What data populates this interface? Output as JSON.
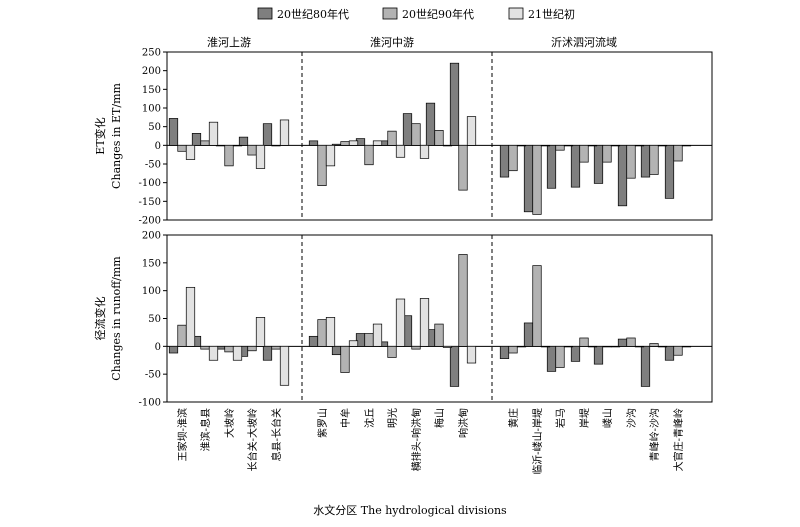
{
  "legend": [
    {
      "label": "20世纪80年代",
      "color": "#7f7f7f"
    },
    {
      "label": "20世纪90年代",
      "color": "#b3b3b3"
    },
    {
      "label": "21世纪初",
      "color": "#e2e2e2"
    }
  ],
  "regions": [
    "淮河上游",
    "淮河中游",
    "沂沭泗河流域"
  ],
  "x_title": "水文分区 The hydrological divisions",
  "chart_data": [
    {
      "type": "bar",
      "ylabel_cn": "ET变化",
      "ylabel_en": "Changes in ET/mm",
      "ylim": [
        -200,
        250
      ],
      "yticks": [
        -200,
        -150,
        -100,
        -50,
        0,
        50,
        100,
        150,
        200,
        250
      ],
      "categories": [
        "王家坝-淮滨",
        "淮滨-息县",
        "大坡岭",
        "长台关-大坡岭",
        "息县-长台关",
        "紫罗山",
        "中牟",
        "沈丘",
        "明光",
        "横排头-响洪甸",
        "梅山",
        "响洪甸",
        "黄庄",
        "临沂-嵝山-岸堤",
        "岩马",
        "岸堤",
        "嵝山",
        "沙沟",
        "青峰岭-沙沟",
        "大官庄-青峰岭"
      ],
      "series": [
        {
          "name": "20世纪80年代",
          "values": [
            72,
            32,
            0,
            22,
            58,
            12,
            3,
            18,
            12,
            85,
            113,
            220,
            -85,
            -178,
            -115,
            -112,
            -102,
            -162,
            -85,
            -142
          ]
        },
        {
          "name": "20世纪90年代",
          "values": [
            -16,
            12,
            -55,
            -26,
            0,
            -108,
            10,
            -52,
            38,
            58,
            40,
            -120,
            -68,
            -185,
            -13,
            -45,
            -45,
            -88,
            -78,
            -42
          ]
        },
        {
          "name": "21世纪初",
          "values": [
            -38,
            62,
            0,
            -62,
            68,
            -55,
            12,
            12,
            -32,
            -35,
            0,
            77,
            0,
            0,
            0,
            0,
            0,
            0,
            0,
            0
          ]
        }
      ]
    },
    {
      "type": "bar",
      "ylabel_cn": "径流变化",
      "ylabel_en": "Changes in runoff/mm",
      "ylim": [
        -100,
        200
      ],
      "yticks": [
        -100,
        -50,
        0,
        50,
        100,
        150,
        200
      ],
      "categories": [
        "王家坝-淮滨",
        "淮滨-息县",
        "大坡岭",
        "长台关-大坡岭",
        "息县-长台关",
        "紫罗山",
        "中牟",
        "沈丘",
        "明光",
        "横排头-响洪甸",
        "梅山",
        "响洪甸",
        "黄庄",
        "临沂-嵝山-岸堤",
        "岩马",
        "岸堤",
        "嵝山",
        "沙沟",
        "青峰岭-沙沟",
        "大官庄-青峰岭"
      ],
      "series": [
        {
          "name": "20世纪80年代",
          "values": [
            -12,
            18,
            -5,
            -18,
            -25,
            18,
            -15,
            23,
            8,
            55,
            30,
            -72,
            -22,
            42,
            -45,
            -27,
            -32,
            13,
            -72,
            -25
          ]
        },
        {
          "name": "20世纪90年代",
          "values": [
            38,
            -5,
            -10,
            -8,
            -5,
            48,
            -47,
            23,
            -20,
            -5,
            40,
            165,
            -12,
            145,
            -38,
            15,
            0,
            15,
            5,
            -16
          ]
        },
        {
          "name": "21世纪初",
          "values": [
            106,
            -25,
            -25,
            52,
            -70,
            52,
            10,
            40,
            85,
            86,
            -2,
            -30,
            0,
            0,
            0,
            0,
            0,
            0,
            0,
            0
          ]
        }
      ]
    }
  ]
}
